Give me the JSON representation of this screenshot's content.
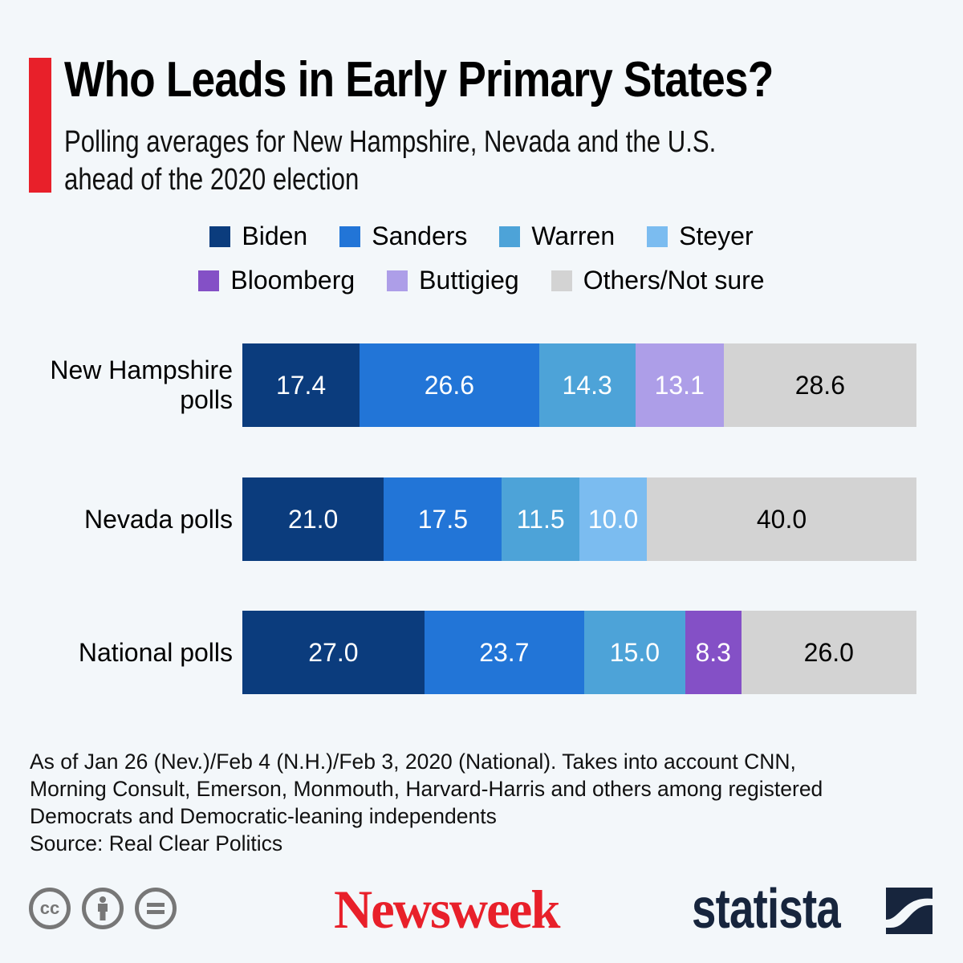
{
  "header": {
    "title": "Who Leads in Early Primary States?",
    "subtitle_line1": "Polling averages for New Hampshire, Nevada and the U.S.",
    "subtitle_line2": "ahead of the 2020 election",
    "accent_color": "#e8202a"
  },
  "chart_data": {
    "type": "bar",
    "orientation": "horizontal",
    "stacked": true,
    "title": "Who Leads in Early Primary States?",
    "subtitle": "Polling averages for New Hampshire, Nevada and the U.S. ahead of the 2020 election",
    "xlabel": "",
    "ylabel": "",
    "xlim": [
      0,
      100
    ],
    "grid": false,
    "legend_position": "top-center",
    "categories": [
      "New Hampshire polls",
      "Nevada polls",
      "National polls"
    ],
    "category_lines": [
      [
        "New Hampshire",
        "polls"
      ],
      [
        "Nevada polls"
      ],
      [
        "National polls"
      ]
    ],
    "series": [
      {
        "name": "Biden",
        "color": "#0b3c7d",
        "values": [
          17.4,
          21.0,
          27.0
        ],
        "labels": [
          "17.4",
          "21.0",
          "27.0"
        ]
      },
      {
        "name": "Sanders",
        "color": "#2275d7",
        "values": [
          26.6,
          17.5,
          23.7
        ],
        "labels": [
          "26.6",
          "17.5",
          "23.7"
        ]
      },
      {
        "name": "Warren",
        "color": "#4da3d8",
        "values": [
          14.3,
          11.5,
          15.0
        ],
        "labels": [
          "14.3",
          "11.5",
          "15.0"
        ]
      },
      {
        "name": "Steyer",
        "color": "#7bbcf0",
        "values": [
          0,
          10.0,
          0
        ],
        "labels": [
          "",
          "10.0",
          ""
        ]
      },
      {
        "name": "Bloomberg",
        "color": "#8450c6",
        "values": [
          0,
          0,
          8.3
        ],
        "labels": [
          "",
          "",
          "8.3"
        ]
      },
      {
        "name": "Buttigieg",
        "color": "#ad9ee8",
        "values": [
          13.1,
          0,
          0
        ],
        "labels": [
          "13.1",
          "",
          ""
        ]
      },
      {
        "name": "Others/Not sure",
        "color": "#d3d3d3",
        "values": [
          28.6,
          40.0,
          26.0
        ],
        "labels": [
          "28.6",
          "40.0",
          "26.0"
        ],
        "dark_text": true
      }
    ]
  },
  "notes": {
    "line1": "As of Jan 26 (Nev.)/Feb 4 (N.H.)/Feb 3, 2020 (National). Takes into account CNN,",
    "line2": "Morning Consult, Emerson, Monmouth, Harvard-Harris and others among registered",
    "line3": "Democrats and Democratic-leaning independents",
    "source": "Source: Real Clear Politics"
  },
  "footer": {
    "cc_icons": [
      "cc-icon",
      "attribution-icon",
      "no-derivatives-icon"
    ],
    "cc_text": "cc",
    "newsweek_logo": "Newsweek",
    "statista_logo": "statista",
    "newsweek_color": "#e8202a",
    "statista_color": "#17253d"
  }
}
